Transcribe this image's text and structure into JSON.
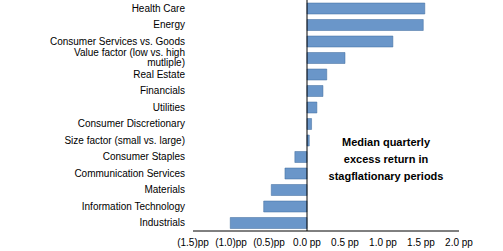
{
  "chart_data": {
    "type": "bar",
    "orientation": "horizontal",
    "categories": [
      "Health Care",
      "Energy",
      "Consumer Services vs. Goods",
      "Value factor (low vs. high mutliple)",
      "Real Estate",
      "Financials",
      "Utilities",
      "Consumer Discretionary",
      "Size factor (small vs. large)",
      "Consumer Staples",
      "Communication Services",
      "Materials",
      "Information Technology",
      "Industrials"
    ],
    "values": [
      1.55,
      1.53,
      1.13,
      0.5,
      0.26,
      0.21,
      0.13,
      0.06,
      0.03,
      -0.16,
      -0.29,
      -0.47,
      -0.57,
      -1.01
    ],
    "color": "#6a96c9",
    "xlim": [
      -1.5,
      2.0
    ],
    "xticks": [
      {
        "value": -1.5,
        "label": "(1.5)pp"
      },
      {
        "value": -1.0,
        "label": "(1.0)pp"
      },
      {
        "value": -0.5,
        "label": "(0.5)pp"
      },
      {
        "value": 0,
        "label": "0.0 pp"
      },
      {
        "value": 0.5,
        "label": "0.5 pp"
      },
      {
        "value": 1.0,
        "label": "1.0 pp"
      },
      {
        "value": 1.5,
        "label": "1.5 pp"
      },
      {
        "value": 2.0,
        "label": "2.0 pp"
      }
    ],
    "grid": false,
    "annotations": [
      "Median quarterly excess return in stagflationary periods"
    ]
  }
}
